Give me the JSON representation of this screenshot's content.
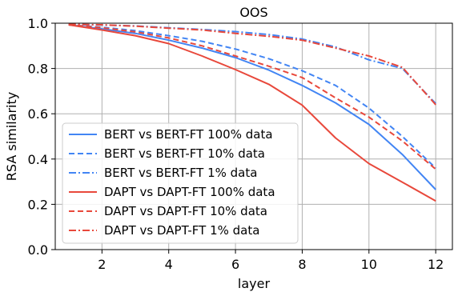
{
  "chart_data": {
    "type": "line",
    "title": "OOS",
    "xlabel": "layer",
    "ylabel": "RSA similarity",
    "xlim": [
      0.6,
      12.5
    ],
    "ylim": [
      0.0,
      1.0
    ],
    "xticks": [
      2,
      4,
      6,
      8,
      10,
      12
    ],
    "yticks": [
      "0.0",
      "0.2",
      "0.4",
      "0.6",
      "0.8",
      "1.0"
    ],
    "grid": true,
    "legend_position": "lower-left",
    "x": [
      1,
      2,
      3,
      4,
      5,
      6,
      7,
      8,
      9,
      10,
      11,
      12
    ],
    "series": [
      {
        "name": "BERT vs BERT-FT 100% data",
        "color": "#4285f4",
        "dash": "solid",
        "values": [
          0.993,
          0.975,
          0.955,
          0.925,
          0.89,
          0.848,
          0.793,
          0.725,
          0.648,
          0.553,
          0.42,
          0.265
        ]
      },
      {
        "name": "BERT vs BERT-FT 10% data",
        "color": "#4285f4",
        "dash": "dashed",
        "values": [
          0.993,
          0.982,
          0.967,
          0.945,
          0.92,
          0.886,
          0.843,
          0.79,
          0.725,
          0.625,
          0.5,
          0.36
        ]
      },
      {
        "name": "BERT vs BERT-FT 1% data",
        "color": "#4285f4",
        "dash": "dashdot",
        "values": [
          0.995,
          0.992,
          0.988,
          0.98,
          0.972,
          0.963,
          0.95,
          0.93,
          0.895,
          0.838,
          0.8,
          0.645
        ]
      },
      {
        "name": "DAPT vs DAPT-FT 100% data",
        "color": "#e8483b",
        "dash": "solid",
        "values": [
          0.993,
          0.97,
          0.945,
          0.91,
          0.855,
          0.795,
          0.73,
          0.638,
          0.493,
          0.38,
          0.298,
          0.215
        ]
      },
      {
        "name": "DAPT vs DAPT-FT 10% data",
        "color": "#e8483b",
        "dash": "dashed",
        "values": [
          0.993,
          0.98,
          0.962,
          0.935,
          0.9,
          0.855,
          0.81,
          0.76,
          0.67,
          0.585,
          0.48,
          0.355
        ]
      },
      {
        "name": "DAPT vs DAPT-FT 1% data",
        "color": "#e8483b",
        "dash": "dashdot",
        "values": [
          0.995,
          0.993,
          0.987,
          0.978,
          0.97,
          0.955,
          0.942,
          0.925,
          0.89,
          0.855,
          0.805,
          0.64
        ]
      }
    ]
  }
}
